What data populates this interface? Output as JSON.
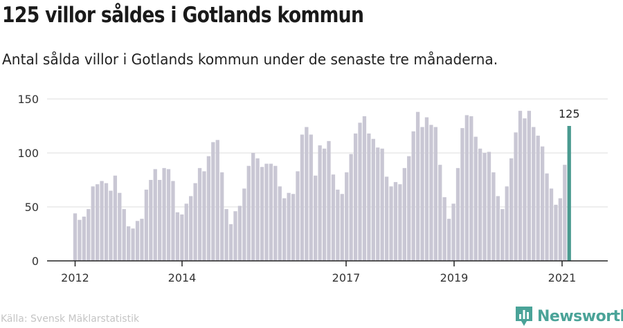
{
  "title": "125 villor såldes i Gotlands kommun",
  "subtitle": "Antal sålda villor i Gotlands kommun under de senaste tre månaderna.",
  "source": "Källa: Svensk Mäklarstatistik",
  "brand": "Newsworthy",
  "colors": {
    "bar": "#c9c7d4",
    "highlight": "#4a9a90",
    "grid": "#dddddd",
    "axis": "#222222",
    "brand": "#4aa398"
  },
  "chart_data": {
    "type": "bar",
    "ylim": [
      0,
      150
    ],
    "yticks": [
      0,
      50,
      100,
      150
    ],
    "xticks": [
      "2012",
      "2014",
      "2017",
      "2019",
      "2021"
    ],
    "highlight_label": "125",
    "grid": true,
    "values": [
      44,
      38,
      41,
      48,
      69,
      71,
      74,
      72,
      65,
      79,
      63,
      48,
      32,
      30,
      37,
      39,
      66,
      75,
      85,
      75,
      86,
      85,
      74,
      45,
      43,
      53,
      60,
      72,
      86,
      83,
      97,
      110,
      112,
      82,
      48,
      34,
      46,
      51,
      67,
      88,
      100,
      95,
      87,
      90,
      90,
      88,
      69,
      58,
      63,
      62,
      83,
      117,
      124,
      117,
      79,
      107,
      104,
      111,
      80,
      66,
      62,
      82,
      99,
      118,
      128,
      134,
      118,
      113,
      105,
      104,
      78,
      69,
      73,
      71,
      86,
      97,
      120,
      138,
      124,
      133,
      126,
      124,
      89,
      59,
      39,
      53,
      86,
      123,
      135,
      134,
      115,
      104,
      100,
      101,
      82,
      60,
      48,
      69,
      95,
      119,
      139,
      132,
      139,
      124,
      116,
      106,
      81,
      67,
      52,
      58,
      89,
      125
    ]
  }
}
